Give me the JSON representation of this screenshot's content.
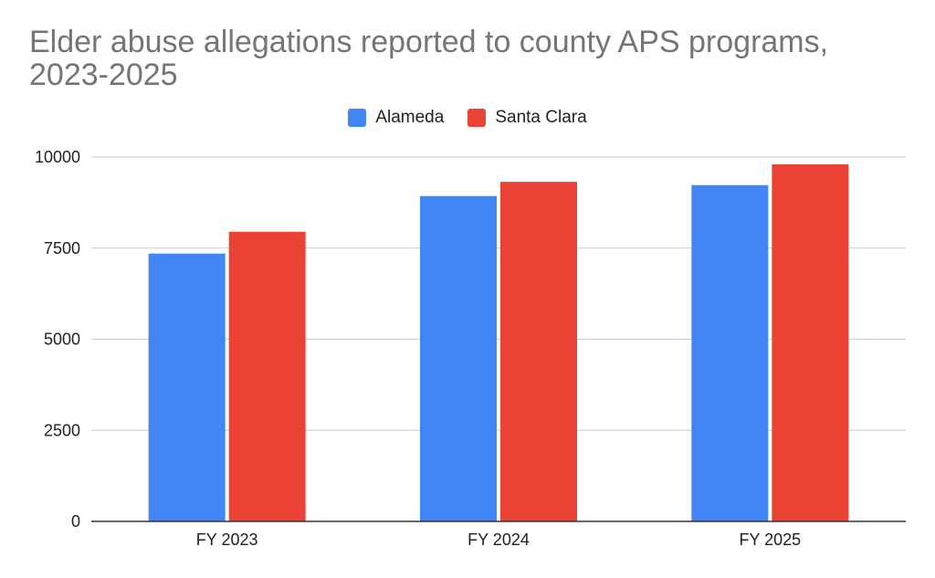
{
  "chart_data": {
    "type": "bar",
    "title": "Elder abuse allegations reported to county APS programs, 2023-2025",
    "categories": [
      "FY 2023",
      "FY 2024",
      "FY 2025"
    ],
    "series": [
      {
        "name": "Alameda",
        "color": "#4285F4",
        "values": [
          7350,
          8930,
          9230
        ]
      },
      {
        "name": "Santa Clara",
        "color": "#EA4335",
        "values": [
          7950,
          9320,
          9800
        ]
      }
    ],
    "ylim": [
      0,
      10000
    ],
    "yticks": [
      0,
      2500,
      5000,
      7500,
      10000
    ],
    "ytick_labels": [
      "0",
      "2500",
      "5000",
      "7500",
      "10000"
    ],
    "grid": true,
    "legend_position": "top-center",
    "xlabel": "",
    "ylabel": ""
  }
}
